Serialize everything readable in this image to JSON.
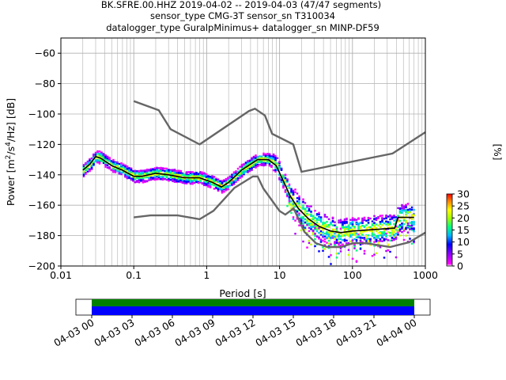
{
  "header": {
    "title_line1": "BK.SFRE.00.HHZ   2019-04-02 -- 2019-04-03  (47/47 segments)",
    "title_line2": "sensor_type CMG-3T sensor_sn T310034",
    "title_line3": "datalogger_type GuralpMinimus+ datalogger_sn MINP-DF59"
  },
  "colorbar": {
    "label": "[%]",
    "ticks": [
      "0",
      "5",
      "10",
      "15",
      "20",
      "25",
      "30"
    ],
    "range": [
      0,
      30
    ]
  },
  "timeline": {
    "tick_labels": [
      "04-03 00",
      "04-03 03",
      "04-03 06",
      "04-03 09",
      "04-03 12",
      "04-03 15",
      "04-03 18",
      "04-03 21",
      "04-04 00"
    ],
    "bar_colors": {
      "top": "#008000",
      "bottom": "#0000ff"
    }
  },
  "chart_data": {
    "type": "line",
    "xlabel": "Period [s]",
    "ylabel": "Power [m²/s⁴/Hz] [dB]",
    "x_scale": "log",
    "xlim": [
      0.01,
      1000
    ],
    "ylim": [
      -200,
      -50
    ],
    "x_tick_labels": [
      "0.01",
      "0.1",
      "1",
      "10",
      "100",
      "1000"
    ],
    "y_tick_labels": [
      "−60",
      "−80",
      "−100",
      "−120",
      "−140",
      "−160",
      "−180",
      "−200"
    ],
    "y_ticks": [
      -60,
      -80,
      -100,
      -120,
      -140,
      -160,
      -180,
      -200
    ],
    "grid": true,
    "series": [
      {
        "role": "NHNM",
        "color": "#666666",
        "points": [
          [
            0.1,
            -91.5
          ],
          [
            0.22,
            -97.5
          ],
          [
            0.32,
            -110
          ],
          [
            0.8,
            -120
          ],
          [
            3.8,
            -98
          ],
          [
            4.6,
            -96.5
          ],
          [
            6.3,
            -101
          ],
          [
            7.9,
            -113
          ],
          [
            15.4,
            -120
          ],
          [
            20,
            -138
          ],
          [
            354.8,
            -126
          ],
          [
            1000,
            -112
          ]
        ]
      },
      {
        "role": "NLNM",
        "color": "#666666",
        "points": [
          [
            0.1,
            -168
          ],
          [
            0.17,
            -166.7
          ],
          [
            0.4,
            -166.7
          ],
          [
            0.8,
            -169.2
          ],
          [
            1.24,
            -163.7
          ],
          [
            2.4,
            -148.6
          ],
          [
            4.3,
            -141.1
          ],
          [
            5,
            -141.1
          ],
          [
            6,
            -149
          ],
          [
            10,
            -163.8
          ],
          [
            12,
            -166.2
          ],
          [
            15.6,
            -162.1
          ],
          [
            21.9,
            -177.5
          ],
          [
            31.6,
            -185
          ],
          [
            45,
            -187.5
          ],
          [
            70,
            -187.5
          ],
          [
            101,
            -185
          ],
          [
            154,
            -185
          ],
          [
            328,
            -187.5
          ],
          [
            600,
            -184.4
          ],
          [
            1000,
            -178
          ]
        ]
      },
      {
        "role": "mode",
        "color": "#000000",
        "points": [
          [
            0.02,
            -137
          ],
          [
            0.025,
            -133
          ],
          [
            0.03,
            -128
          ],
          [
            0.035,
            -129
          ],
          [
            0.05,
            -134
          ],
          [
            0.07,
            -137
          ],
          [
            0.1,
            -141
          ],
          [
            0.13,
            -141
          ],
          [
            0.2,
            -139
          ],
          [
            0.3,
            -140
          ],
          [
            0.5,
            -142
          ],
          [
            0.8,
            -142
          ],
          [
            1.2,
            -145
          ],
          [
            1.6,
            -148
          ],
          [
            2,
            -145
          ],
          [
            3,
            -137
          ],
          [
            4,
            -133
          ],
          [
            5,
            -130
          ],
          [
            7,
            -130
          ],
          [
            9,
            -134
          ],
          [
            11,
            -143
          ],
          [
            14,
            -154
          ],
          [
            18,
            -162
          ],
          [
            25,
            -169
          ],
          [
            35,
            -174
          ],
          [
            50,
            -177
          ],
          [
            70,
            -178
          ],
          [
            100,
            -177
          ],
          [
            200,
            -176
          ],
          [
            380,
            -175
          ],
          [
            420,
            -168
          ],
          [
            700,
            -168
          ]
        ]
      }
    ],
    "density": {
      "colormap": "pqlx",
      "color_scale": [
        0,
        30
      ],
      "note": "probabilistic PSD histogram"
    }
  }
}
